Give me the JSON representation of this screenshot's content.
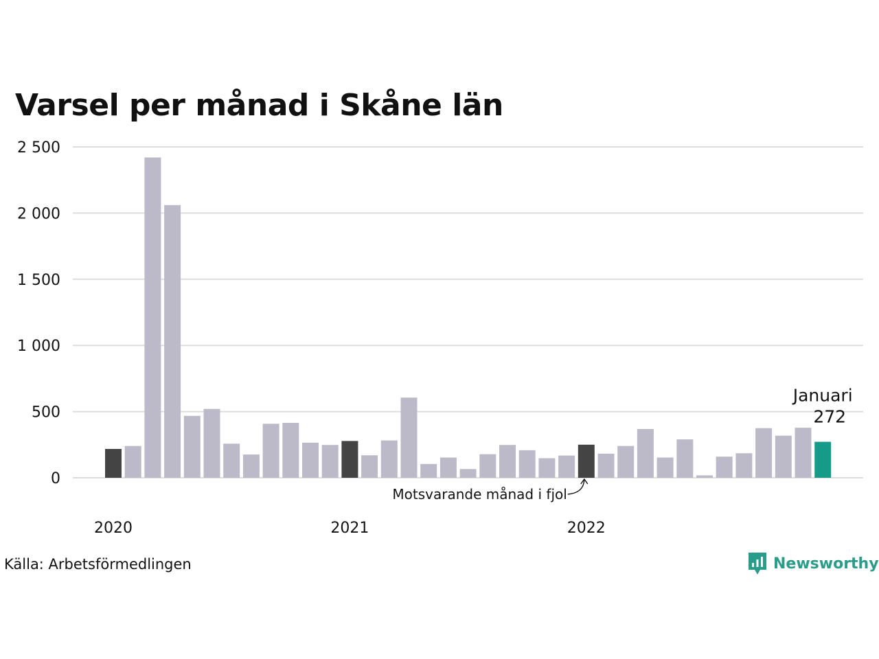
{
  "chart_data": {
    "type": "bar",
    "title": "Varsel per månad i Skåne län",
    "xlabel": "",
    "ylabel": "",
    "ylim": [
      0,
      2500
    ],
    "y_ticks": [
      0,
      500,
      1000,
      1500,
      2000,
      2500
    ],
    "y_tick_labels": [
      "0",
      "500",
      "1 000",
      "1 500",
      "2 000",
      "2 500"
    ],
    "grid": true,
    "x_start": "2020-01",
    "year_labels": [
      {
        "index": 0,
        "label": "2020"
      },
      {
        "index": 12,
        "label": "2021"
      },
      {
        "index": 24,
        "label": "2022"
      }
    ],
    "values": [
      218,
      240,
      2420,
      2060,
      468,
      520,
      258,
      176,
      408,
      415,
      265,
      248,
      278,
      170,
      282,
      606,
      104,
      153,
      66,
      178,
      248,
      208,
      148,
      168,
      250,
      182,
      240,
      368,
      153,
      290,
      18,
      160,
      185,
      375,
      318,
      378,
      272
    ],
    "bar_colors": {
      "default": "#bcbac8",
      "same_month": "#444444",
      "latest": "#169b88"
    },
    "same_month_indices": [
      0,
      12,
      24
    ],
    "highlight": {
      "index": 36,
      "label": "Januari",
      "value_label": "272"
    },
    "annotation": {
      "text": "Motsvarande månad i fjol",
      "target_index": 24
    }
  },
  "footer": {
    "source": "Källa: Arbetsförmedlingen",
    "brand": "Newsworthy",
    "brand_icon": "newsworthy-logo-icon"
  }
}
